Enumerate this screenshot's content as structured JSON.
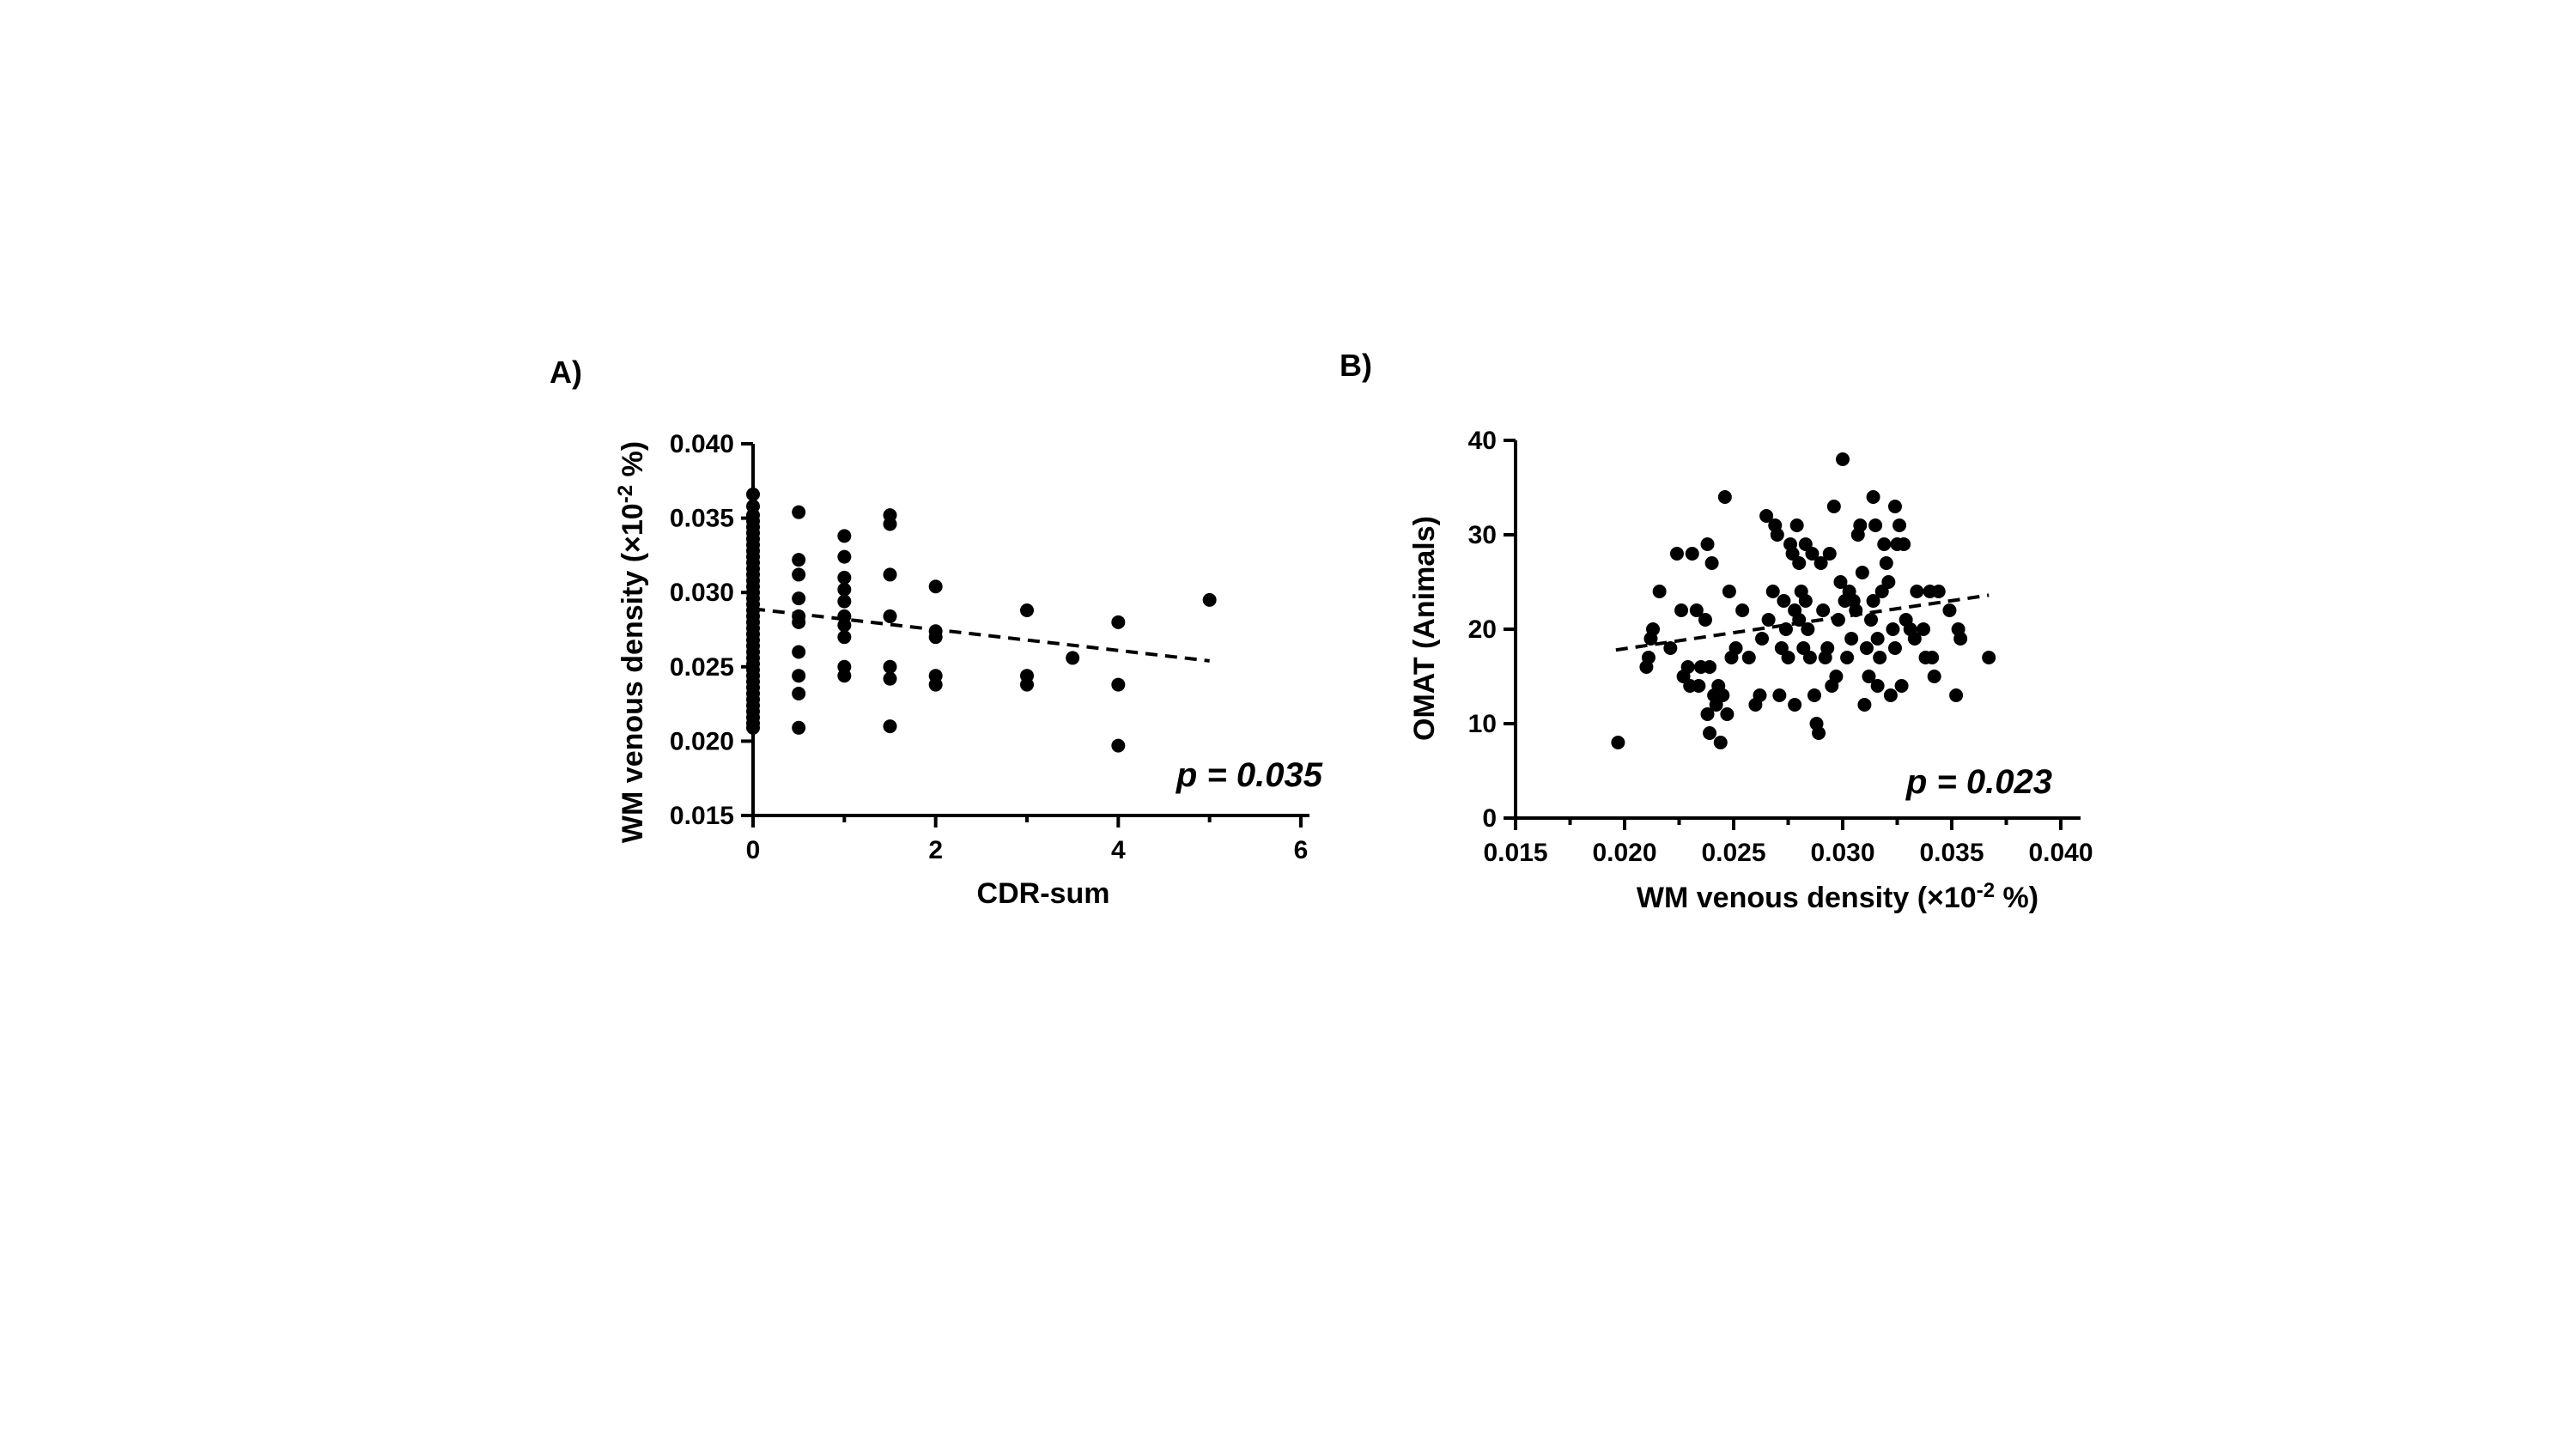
{
  "chart_data": [
    {
      "type": "scatter",
      "panel_label": "A)",
      "xlabel": "CDR-sum",
      "ylabel_main": "WM venous density (",
      "ylabel_times": "×10",
      "ylabel_exp": "-2",
      "ylabel_tail": " %)",
      "xlim": [
        0,
        6
      ],
      "ylim": [
        0.015,
        0.04
      ],
      "xticks": [
        0,
        2,
        4,
        6
      ],
      "yticks": [
        0.015,
        0.02,
        0.025,
        0.03,
        0.035,
        0.04
      ],
      "xtick_labels": [
        "0",
        "2",
        "4",
        "6"
      ],
      "ytick_labels": [
        "0.015",
        "0.020",
        "0.025",
        "0.030",
        "0.035",
        "0.040"
      ],
      "annotation": "p = 0.035",
      "trendline": {
        "x": [
          0,
          5
        ],
        "y": [
          0.0289,
          0.0254
        ]
      },
      "points": [
        [
          0,
          0.0366
        ],
        [
          0,
          0.0358
        ],
        [
          0,
          0.0352
        ],
        [
          0,
          0.0348
        ],
        [
          0,
          0.0344
        ],
        [
          0,
          0.034
        ],
        [
          0,
          0.0336
        ],
        [
          0,
          0.0332
        ],
        [
          0,
          0.0328
        ],
        [
          0,
          0.0324
        ],
        [
          0,
          0.032
        ],
        [
          0,
          0.0316
        ],
        [
          0,
          0.0312
        ],
        [
          0,
          0.0308
        ],
        [
          0,
          0.0304
        ],
        [
          0,
          0.03
        ],
        [
          0,
          0.0296
        ],
        [
          0,
          0.0292
        ],
        [
          0,
          0.0288
        ],
        [
          0,
          0.0284
        ],
        [
          0,
          0.028
        ],
        [
          0,
          0.0276
        ],
        [
          0,
          0.0272
        ],
        [
          0,
          0.0268
        ],
        [
          0,
          0.0264
        ],
        [
          0,
          0.026
        ],
        [
          0,
          0.0256
        ],
        [
          0,
          0.0252
        ],
        [
          0,
          0.0248
        ],
        [
          0,
          0.0244
        ],
        [
          0,
          0.024
        ],
        [
          0,
          0.0236
        ],
        [
          0,
          0.0232
        ],
        [
          0,
          0.0228
        ],
        [
          0,
          0.0224
        ],
        [
          0,
          0.022
        ],
        [
          0,
          0.0216
        ],
        [
          0,
          0.0212
        ],
        [
          0,
          0.0209
        ],
        [
          0.5,
          0.0354
        ],
        [
          0.5,
          0.0322
        ],
        [
          0.5,
          0.0312
        ],
        [
          0.5,
          0.0296
        ],
        [
          0.5,
          0.0284
        ],
        [
          0.5,
          0.028
        ],
        [
          0.5,
          0.026
        ],
        [
          0.5,
          0.0244
        ],
        [
          0.5,
          0.0232
        ],
        [
          0.5,
          0.0209
        ],
        [
          1,
          0.0338
        ],
        [
          1,
          0.0324
        ],
        [
          1,
          0.031
        ],
        [
          1,
          0.0302
        ],
        [
          1,
          0.0294
        ],
        [
          1,
          0.0284
        ],
        [
          1,
          0.0278
        ],
        [
          1,
          0.027
        ],
        [
          1,
          0.025
        ],
        [
          1,
          0.0244
        ],
        [
          1.5,
          0.0352
        ],
        [
          1.5,
          0.0346
        ],
        [
          1.5,
          0.0312
        ],
        [
          1.5,
          0.0284
        ],
        [
          1.5,
          0.025
        ],
        [
          1.5,
          0.0242
        ],
        [
          1.5,
          0.021
        ],
        [
          2,
          0.0304
        ],
        [
          2,
          0.0274
        ],
        [
          2,
          0.027
        ],
        [
          2,
          0.0244
        ],
        [
          2,
          0.0238
        ],
        [
          3,
          0.0288
        ],
        [
          3,
          0.0244
        ],
        [
          3,
          0.0238
        ],
        [
          3.5,
          0.0256
        ],
        [
          4,
          0.028
        ],
        [
          4,
          0.0238
        ],
        [
          4,
          0.0197
        ],
        [
          5,
          0.0295
        ]
      ]
    },
    {
      "type": "scatter",
      "panel_label": "B)",
      "ylabel": "OMAT (Animals)",
      "xlabel_main": "WM venous density (",
      "xlabel_times": "×10",
      "xlabel_exp": "-2",
      "xlabel_tail": " %)",
      "xlim": [
        0.015,
        0.04
      ],
      "ylim": [
        0,
        40
      ],
      "xticks": [
        0.015,
        0.02,
        0.025,
        0.03,
        0.035,
        0.04
      ],
      "yticks": [
        0,
        10,
        20,
        30,
        40
      ],
      "xtick_labels": [
        "0.015",
        "0.020",
        "0.025",
        "0.030",
        "0.035",
        "0.040"
      ],
      "ytick_labels": [
        "0",
        "10",
        "20",
        "30",
        "40"
      ],
      "annotation": "p = 0.023",
      "trendline": {
        "x": [
          0.0196,
          0.0367
        ],
        "y": [
          17.8,
          23.6
        ]
      },
      "points": [
        [
          0.0197,
          8
        ],
        [
          0.021,
          16
        ],
        [
          0.0211,
          17
        ],
        [
          0.0212,
          19
        ],
        [
          0.0213,
          20
        ],
        [
          0.0216,
          24
        ],
        [
          0.0221,
          18
        ],
        [
          0.0224,
          28
        ],
        [
          0.0226,
          22
        ],
        [
          0.0227,
          15
        ],
        [
          0.0229,
          16
        ],
        [
          0.023,
          14
        ],
        [
          0.0231,
          28
        ],
        [
          0.0233,
          22
        ],
        [
          0.0234,
          14
        ],
        [
          0.0235,
          16
        ],
        [
          0.0237,
          21
        ],
        [
          0.0238,
          29
        ],
        [
          0.0238,
          11
        ],
        [
          0.0239,
          16
        ],
        [
          0.0239,
          9
        ],
        [
          0.024,
          27
        ],
        [
          0.0241,
          13
        ],
        [
          0.0242,
          12
        ],
        [
          0.0243,
          14
        ],
        [
          0.0244,
          8
        ],
        [
          0.0245,
          13
        ],
        [
          0.0246,
          34
        ],
        [
          0.0247,
          11
        ],
        [
          0.0248,
          24
        ],
        [
          0.0249,
          17
        ],
        [
          0.0251,
          18
        ],
        [
          0.0254,
          22
        ],
        [
          0.0257,
          17
        ],
        [
          0.026,
          12
        ],
        [
          0.0262,
          13
        ],
        [
          0.0263,
          19
        ],
        [
          0.0265,
          32
        ],
        [
          0.0266,
          21
        ],
        [
          0.0268,
          24
        ],
        [
          0.0269,
          31
        ],
        [
          0.027,
          30
        ],
        [
          0.0271,
          13
        ],
        [
          0.0272,
          18
        ],
        [
          0.0273,
          23
        ],
        [
          0.0274,
          20
        ],
        [
          0.0275,
          17
        ],
        [
          0.0276,
          29
        ],
        [
          0.0277,
          28
        ],
        [
          0.0278,
          22
        ],
        [
          0.0278,
          12
        ],
        [
          0.0279,
          31
        ],
        [
          0.028,
          27
        ],
        [
          0.028,
          21
        ],
        [
          0.0281,
          24
        ],
        [
          0.0282,
          18
        ],
        [
          0.0283,
          29
        ],
        [
          0.0283,
          23
        ],
        [
          0.0284,
          20
        ],
        [
          0.0285,
          17
        ],
        [
          0.0286,
          28
        ],
        [
          0.0287,
          13
        ],
        [
          0.0288,
          10
        ],
        [
          0.0289,
          9
        ],
        [
          0.029,
          27
        ],
        [
          0.0291,
          22
        ],
        [
          0.0292,
          17
        ],
        [
          0.0293,
          18
        ],
        [
          0.0294,
          28
        ],
        [
          0.0295,
          14
        ],
        [
          0.0296,
          33
        ],
        [
          0.0297,
          15
        ],
        [
          0.0298,
          21
        ],
        [
          0.0299,
          25
        ],
        [
          0.03,
          38
        ],
        [
          0.0301,
          23
        ],
        [
          0.0302,
          17
        ],
        [
          0.0303,
          24
        ],
        [
          0.0304,
          19
        ],
        [
          0.0305,
          23
        ],
        [
          0.0306,
          22
        ],
        [
          0.0307,
          30
        ],
        [
          0.0308,
          31
        ],
        [
          0.0309,
          26
        ],
        [
          0.031,
          12
        ],
        [
          0.0311,
          18
        ],
        [
          0.0312,
          15
        ],
        [
          0.0313,
          21
        ],
        [
          0.0314,
          34
        ],
        [
          0.0314,
          23
        ],
        [
          0.0315,
          31
        ],
        [
          0.0316,
          19
        ],
        [
          0.0316,
          14
        ],
        [
          0.0317,
          17
        ],
        [
          0.0318,
          24
        ],
        [
          0.0319,
          29
        ],
        [
          0.032,
          27
        ],
        [
          0.0321,
          25
        ],
        [
          0.0322,
          13
        ],
        [
          0.0323,
          20
        ],
        [
          0.0324,
          33
        ],
        [
          0.0324,
          18
        ],
        [
          0.0325,
          29
        ],
        [
          0.0326,
          31
        ],
        [
          0.0327,
          14
        ],
        [
          0.0328,
          29
        ],
        [
          0.0329,
          21
        ],
        [
          0.0331,
          20
        ],
        [
          0.0333,
          19
        ],
        [
          0.0334,
          24
        ],
        [
          0.0337,
          20
        ],
        [
          0.0338,
          17
        ],
        [
          0.034,
          24
        ],
        [
          0.0341,
          17
        ],
        [
          0.0342,
          15
        ],
        [
          0.0344,
          24
        ],
        [
          0.0349,
          22
        ],
        [
          0.0352,
          13
        ],
        [
          0.0353,
          20
        ],
        [
          0.0354,
          19
        ],
        [
          0.0367,
          17
        ]
      ]
    }
  ]
}
